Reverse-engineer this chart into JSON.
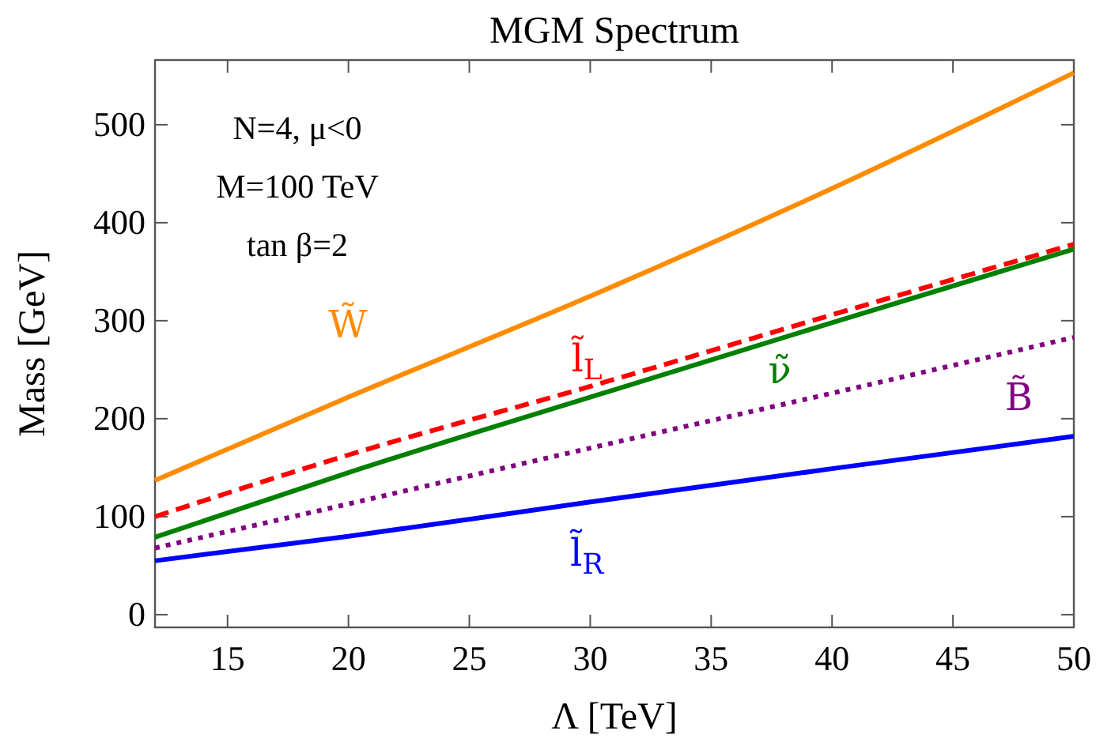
{
  "chart_data": {
    "type": "line",
    "title": "MGM Spectrum",
    "xlabel": "Λ  [TeV]",
    "ylabel": "Mass  [GeV]",
    "xlim": [
      12,
      50
    ],
    "ylim": [
      -13,
      566
    ],
    "xticks": [
      15,
      20,
      25,
      30,
      35,
      40,
      45,
      50
    ],
    "yticks": [
      0,
      100,
      200,
      300,
      400,
      500
    ],
    "grid": false,
    "marker": "none",
    "x": [
      12,
      20,
      30,
      40,
      50
    ],
    "series": [
      {
        "name": "W̃",
        "color": "#ff8c00",
        "line_style": "solid",
        "values": [
          137,
          222,
          325,
          435,
          553
        ]
      },
      {
        "name": "l̃$_{L}$",
        "color": "#ff0000",
        "line_style": "dashed",
        "values": [
          100,
          163,
          233,
          306,
          378
        ]
      },
      {
        "name": "ν̃",
        "color": "#008000",
        "line_style": "solid",
        "values": [
          79,
          145,
          222,
          298,
          373
        ]
      },
      {
        "name": "B̃",
        "color": "#800080",
        "line_style": "dotted",
        "values": [
          68,
          113,
          170,
          226,
          283
        ]
      },
      {
        "name": "l̃$_{R}$",
        "color": "#0000ff",
        "line_style": "solid",
        "values": [
          55,
          80,
          115,
          149,
          182
        ]
      }
    ],
    "annotations": [
      "N=4,  μ<0",
      "M=100 TeV",
      "tan β=2"
    ]
  }
}
